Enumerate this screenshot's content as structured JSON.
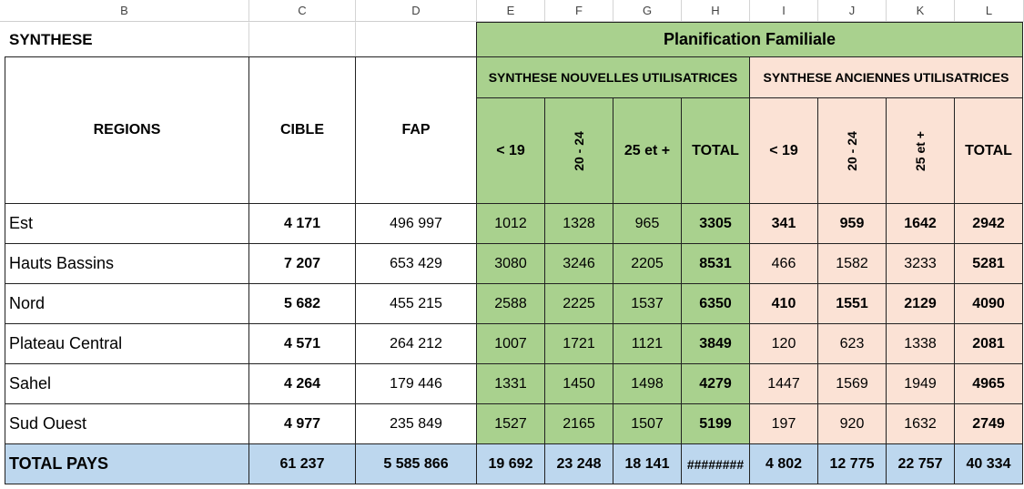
{
  "column_letters": [
    "B",
    "C",
    "D",
    "E",
    "F",
    "G",
    "H",
    "I",
    "J",
    "K",
    "L"
  ],
  "sheet": {
    "title": "SYNTHESE",
    "group_title": "Planification Familiale",
    "new_users_header": "SYNTHESE NOUVELLES UTILISATRICES",
    "old_users_header": "SYNTHESE ANCIENNES UTILISATRICES",
    "headers": {
      "regions": "REGIONS",
      "cible": "CIBLE",
      "fap": "FAP",
      "age_groups": [
        "< 19",
        "20 - 24",
        "25 et +",
        "TOTAL"
      ]
    },
    "rows": [
      {
        "region": "Est",
        "cible": "4 171",
        "fap": "496 997",
        "new": [
          "1012",
          "1328",
          "965",
          "3305"
        ],
        "old": [
          "341",
          "959",
          "1642",
          "2942"
        ]
      },
      {
        "region": "Hauts Bassins",
        "cible": "7 207",
        "fap": "653 429",
        "new": [
          "3080",
          "3246",
          "2205",
          "8531"
        ],
        "old": [
          "466",
          "1582",
          "3233",
          "5281"
        ]
      },
      {
        "region": "Nord",
        "cible": "5 682",
        "fap": "455 215",
        "new": [
          "2588",
          "2225",
          "1537",
          "6350"
        ],
        "old": [
          "410",
          "1551",
          "2129",
          "4090"
        ]
      },
      {
        "region": "Plateau Central",
        "cible": "4 571",
        "fap": "264 212",
        "new": [
          "1007",
          "1721",
          "1121",
          "3849"
        ],
        "old": [
          "120",
          "623",
          "1338",
          "2081"
        ]
      },
      {
        "region": "Sahel",
        "cible": "4 264",
        "fap": "179 446",
        "new": [
          "1331",
          "1450",
          "1498",
          "4279"
        ],
        "old": [
          "1447",
          "1569",
          "1949",
          "4965"
        ]
      },
      {
        "region": "Sud Ouest",
        "cible": "4 977",
        "fap": "235 849",
        "new": [
          "1527",
          "2165",
          "1507",
          "5199"
        ],
        "old": [
          "197",
          "920",
          "1632",
          "2749"
        ]
      }
    ],
    "total": {
      "label": "TOTAL PAYS",
      "cible": "61 237",
      "fap": "5 585 866",
      "new": [
        "19 692",
        "23 248",
        "18 141",
        "########"
      ],
      "old": [
        "4 802",
        "12 775",
        "22 757",
        "40 334"
      ]
    }
  }
}
